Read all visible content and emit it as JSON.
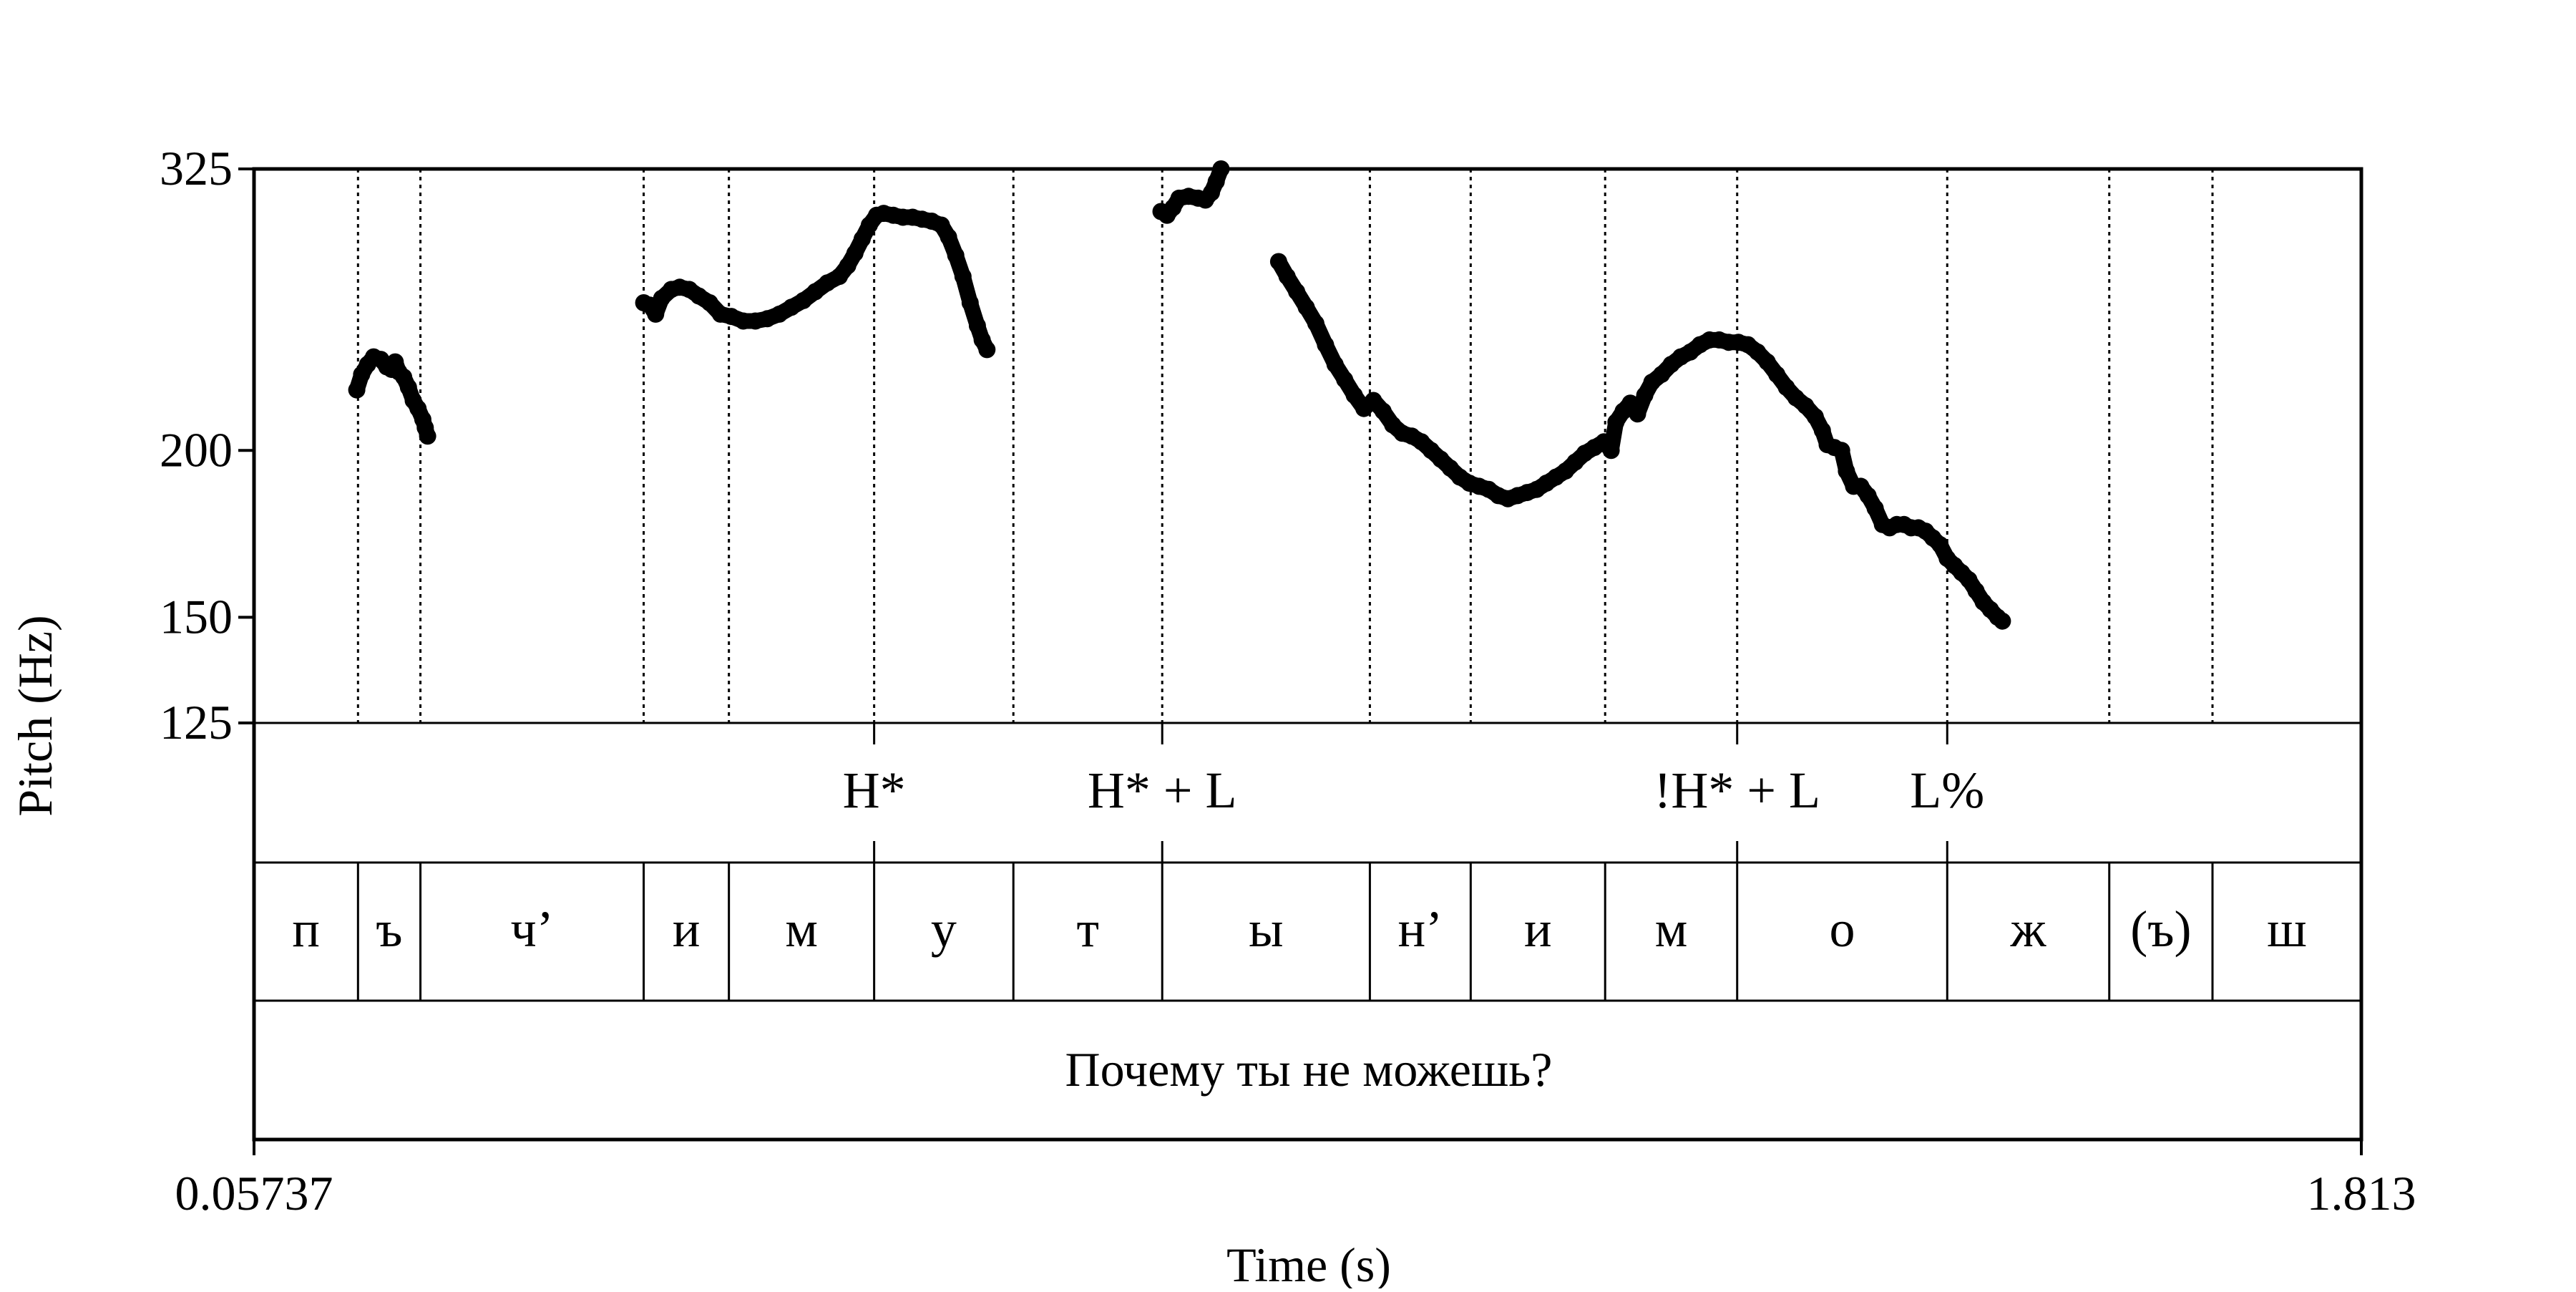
{
  "chart_data": {
    "type": "scatter",
    "xlabel": "Time (s)",
    "ylabel": "Pitch (Hz)",
    "xlim": [
      0.05737,
      1.813
    ],
    "x_tick_labels": [
      "0.05737",
      "1.813"
    ],
    "ylim": [
      125,
      325
    ],
    "y_scale": "log",
    "y_ticks": [
      125,
      150,
      200,
      325
    ],
    "boundaries": [
      0.144,
      0.196,
      0.382,
      0.453,
      0.574,
      0.69,
      0.814,
      0.987,
      1.071,
      1.183,
      1.293,
      1.468,
      1.603,
      1.689
    ],
    "tones": [
      {
        "label": "H*",
        "time": 0.574
      },
      {
        "label": "H* + L",
        "time": 0.814
      },
      {
        "label": "!H* + L",
        "time": 1.293
      },
      {
        "label": "L%",
        "time": 1.468
      }
    ],
    "segments": [
      {
        "label": "п",
        "start": 0.05737,
        "end": 0.144
      },
      {
        "label": "ъ",
        "start": 0.144,
        "end": 0.196
      },
      {
        "label": "ч’",
        "start": 0.196,
        "end": 0.382
      },
      {
        "label": "и",
        "start": 0.382,
        "end": 0.453
      },
      {
        "label": "м",
        "start": 0.453,
        "end": 0.574
      },
      {
        "label": "у",
        "start": 0.574,
        "end": 0.69
      },
      {
        "label": "т",
        "start": 0.69,
        "end": 0.814
      },
      {
        "label": "ы",
        "start": 0.814,
        "end": 0.987
      },
      {
        "label": "н’",
        "start": 0.987,
        "end": 1.071
      },
      {
        "label": "и",
        "start": 1.071,
        "end": 1.183
      },
      {
        "label": "м",
        "start": 1.183,
        "end": 1.293
      },
      {
        "label": "о",
        "start": 1.293,
        "end": 1.468
      },
      {
        "label": "ж",
        "start": 1.468,
        "end": 1.603
      },
      {
        "label": "(ъ)",
        "start": 1.603,
        "end": 1.689
      },
      {
        "label": "ш",
        "start": 1.689,
        "end": 1.813
      }
    ],
    "sentence": "Почему ты не можешь?",
    "series": [
      {
        "points": [
          [
            0.143,
            222
          ],
          [
            0.147,
            228
          ],
          [
            0.152,
            232
          ],
          [
            0.157,
            235
          ],
          [
            0.163,
            234
          ],
          [
            0.168,
            231
          ],
          [
            0.172,
            230
          ],
          [
            0.175,
            233
          ],
          [
            0.178,
            229
          ],
          [
            0.182,
            227
          ],
          [
            0.186,
            223
          ],
          [
            0.19,
            218
          ],
          [
            0.194,
            215
          ],
          [
            0.198,
            211
          ],
          [
            0.2,
            208
          ],
          [
            0.202,
            205
          ]
        ]
      },
      {
        "points": [
          [
            0.382,
            258
          ],
          [
            0.387,
            257
          ],
          [
            0.392,
            253
          ],
          [
            0.397,
            260
          ],
          [
            0.405,
            264
          ],
          [
            0.412,
            265
          ],
          [
            0.42,
            264
          ],
          [
            0.428,
            261
          ],
          [
            0.437,
            258
          ],
          [
            0.446,
            253
          ],
          [
            0.455,
            252
          ],
          [
            0.465,
            250
          ],
          [
            0.475,
            250
          ],
          [
            0.485,
            251
          ],
          [
            0.495,
            253
          ],
          [
            0.505,
            256
          ],
          [
            0.515,
            259
          ],
          [
            0.525,
            263
          ],
          [
            0.535,
            267
          ],
          [
            0.545,
            270
          ],
          [
            0.552,
            275
          ],
          [
            0.558,
            281
          ],
          [
            0.564,
            288
          ],
          [
            0.57,
            295
          ],
          [
            0.576,
            300
          ],
          [
            0.582,
            301
          ],
          [
            0.59,
            300
          ],
          [
            0.598,
            299
          ],
          [
            0.606,
            299
          ],
          [
            0.614,
            298
          ],
          [
            0.622,
            297
          ],
          [
            0.63,
            295
          ],
          [
            0.636,
            289
          ],
          [
            0.642,
            280
          ],
          [
            0.648,
            270
          ],
          [
            0.654,
            258
          ],
          [
            0.66,
            248
          ],
          [
            0.664,
            242
          ],
          [
            0.668,
            238
          ]
        ]
      },
      {
        "points": [
          [
            0.813,
            302
          ],
          [
            0.818,
            300
          ],
          [
            0.823,
            304
          ],
          [
            0.828,
            309
          ],
          [
            0.836,
            310
          ],
          [
            0.844,
            309
          ],
          [
            0.85,
            308
          ],
          [
            0.855,
            312
          ],
          [
            0.859,
            318
          ],
          [
            0.863,
            325
          ]
        ]
      },
      {
        "points": [
          [
            0.911,
            277
          ],
          [
            0.918,
            270
          ],
          [
            0.926,
            263
          ],
          [
            0.934,
            256
          ],
          [
            0.942,
            249
          ],
          [
            0.95,
            240
          ],
          [
            0.958,
            232
          ],
          [
            0.966,
            226
          ],
          [
            0.974,
            220
          ],
          [
            0.982,
            215
          ],
          [
            0.99,
            218
          ],
          [
            0.998,
            214
          ],
          [
            1.006,
            209
          ],
          [
            1.014,
            206
          ],
          [
            1.022,
            205
          ],
          [
            1.03,
            203
          ],
          [
            1.038,
            200
          ],
          [
            1.046,
            197
          ],
          [
            1.054,
            194
          ],
          [
            1.062,
            191
          ],
          [
            1.07,
            189
          ],
          [
            1.078,
            188
          ],
          [
            1.086,
            187
          ],
          [
            1.094,
            185
          ],
          [
            1.102,
            184
          ],
          [
            1.11,
            185
          ],
          [
            1.118,
            186
          ],
          [
            1.126,
            187
          ],
          [
            1.134,
            189
          ],
          [
            1.142,
            191
          ],
          [
            1.15,
            193
          ],
          [
            1.158,
            196
          ],
          [
            1.166,
            199
          ],
          [
            1.174,
            201
          ],
          [
            1.182,
            203
          ],
          [
            1.188,
            200
          ],
          [
            1.192,
            210
          ],
          [
            1.198,
            214
          ],
          [
            1.204,
            217
          ],
          [
            1.21,
            213
          ],
          [
            1.216,
            220
          ],
          [
            1.222,
            225
          ],
          [
            1.23,
            228
          ],
          [
            1.238,
            232
          ],
          [
            1.246,
            235
          ],
          [
            1.254,
            237
          ],
          [
            1.262,
            240
          ],
          [
            1.27,
            242
          ],
          [
            1.278,
            242
          ],
          [
            1.286,
            241
          ],
          [
            1.294,
            241
          ],
          [
            1.302,
            240
          ],
          [
            1.31,
            237
          ],
          [
            1.318,
            233
          ],
          [
            1.326,
            228
          ],
          [
            1.334,
            223
          ],
          [
            1.342,
            219
          ],
          [
            1.35,
            216
          ],
          [
            1.358,
            212
          ],
          [
            1.364,
            207
          ],
          [
            1.368,
            202
          ],
          [
            1.374,
            201
          ],
          [
            1.38,
            200
          ],
          [
            1.384,
            193
          ],
          [
            1.39,
            188
          ],
          [
            1.396,
            188
          ],
          [
            1.402,
            185
          ],
          [
            1.408,
            181
          ],
          [
            1.414,
            176
          ],
          [
            1.42,
            175
          ],
          [
            1.426,
            176
          ],
          [
            1.432,
            176
          ],
          [
            1.438,
            175
          ],
          [
            1.444,
            175
          ],
          [
            1.45,
            174
          ],
          [
            1.456,
            172
          ],
          [
            1.462,
            170
          ],
          [
            1.468,
            166
          ],
          [
            1.474,
            164
          ],
          [
            1.48,
            162
          ],
          [
            1.486,
            160
          ],
          [
            1.492,
            157
          ],
          [
            1.498,
            154
          ],
          [
            1.504,
            152
          ],
          [
            1.51,
            150
          ],
          [
            1.514,
            149
          ]
        ]
      }
    ]
  }
}
